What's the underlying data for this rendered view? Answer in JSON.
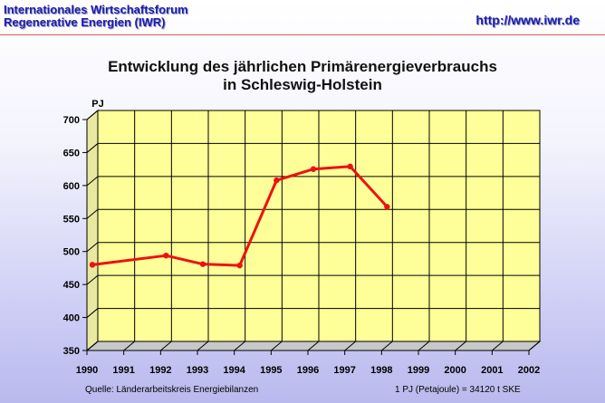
{
  "header": {
    "org_line1": "Internationales Wirtschaftsforum",
    "org_line2": "Regenerative Energien (IWR)",
    "url": "http://www.iwr.de"
  },
  "footer": {
    "source": "Quelle: Länderarbeitskreis Energiebilanzen",
    "note": "1 PJ (Petajoule) = 34120 t SKE"
  },
  "chart_data": {
    "type": "line",
    "title_line1": "Entwicklung des jährlichen Primärenergieverbrauchs",
    "title_line2": "in Schleswig-Holstein",
    "ylabel": "PJ",
    "xlabel": "",
    "ylim": [
      350,
      700
    ],
    "yticks": [
      350,
      400,
      450,
      500,
      550,
      600,
      650,
      700
    ],
    "categories": [
      "1990",
      "1991",
      "1992",
      "1993",
      "1994",
      "1995",
      "1996",
      "1997",
      "1998",
      "1999",
      "2000",
      "2001",
      "2002"
    ],
    "series": [
      {
        "values": [
          473,
          null,
          487,
          474,
          472,
          601,
          618,
          622,
          561,
          null,
          null,
          null,
          null
        ],
        "color": "#ee1111"
      }
    ],
    "colors": {
      "plot_back": "#ffff99",
      "plot_side": "#e8e8a0",
      "grid": "#000000"
    },
    "grid": true,
    "legend": "none"
  }
}
